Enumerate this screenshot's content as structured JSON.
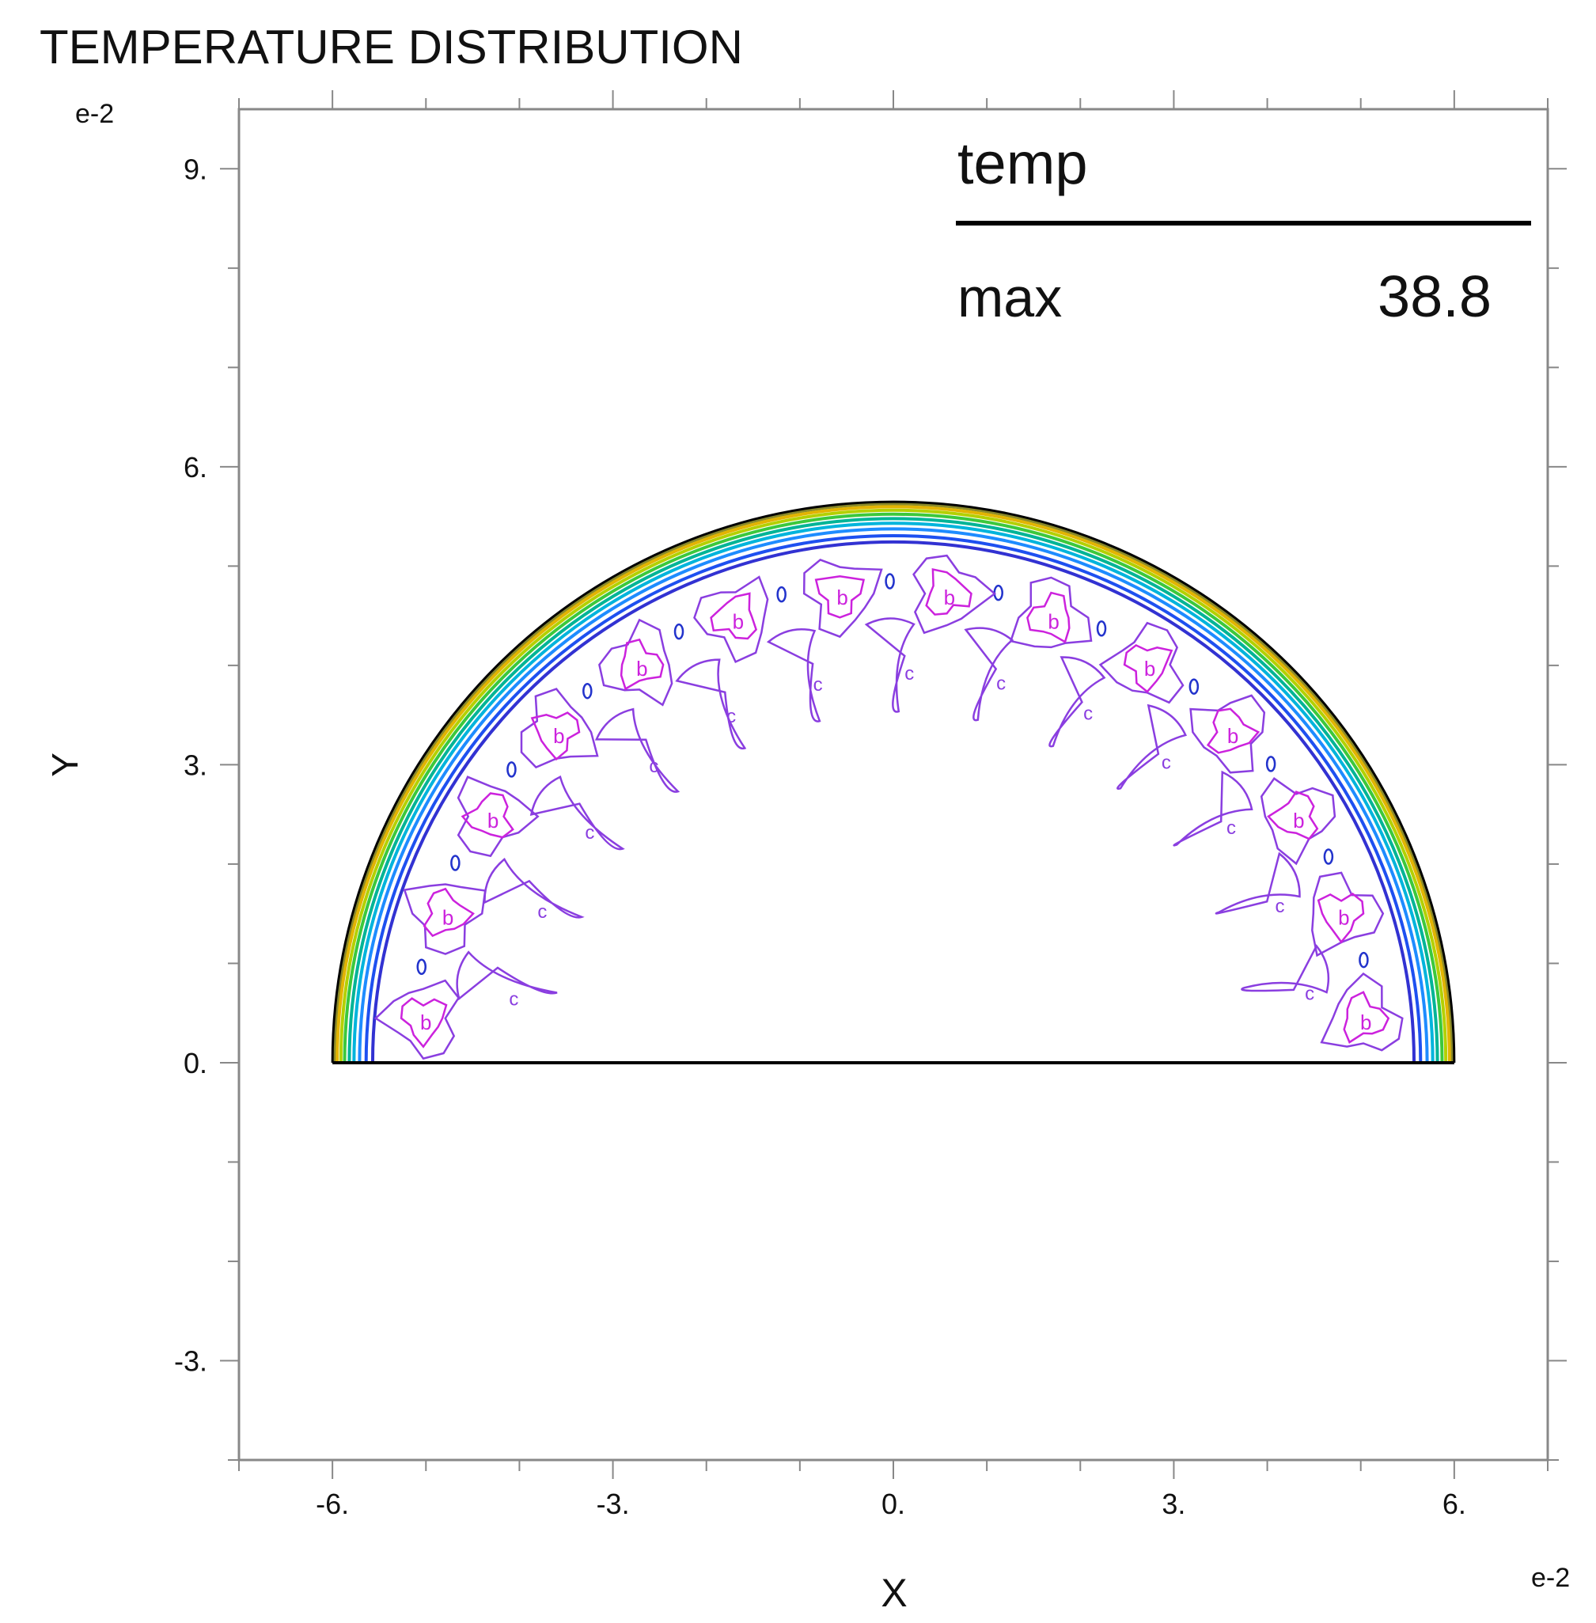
{
  "chart_data": {
    "type": "contour",
    "title": "TEMPERATURE DISTRIBUTION",
    "xlabel": "X",
    "ylabel": "Y",
    "x_exponent": "e-2",
    "y_exponent": "e-2",
    "xlim": [
      -7.0,
      7.0
    ],
    "ylim": [
      -4.0,
      9.6
    ],
    "x_ticks": [
      -6,
      -3,
      0,
      3,
      6
    ],
    "x_tick_labels": [
      "-6.",
      "-3.",
      "0.",
      "3.",
      "6."
    ],
    "y_ticks": [
      -3,
      0,
      3,
      6,
      9
    ],
    "y_tick_labels": [
      "-3.",
      "0.",
      "3.",
      "6.",
      "9."
    ],
    "minor_tick_step": 1,
    "grid": false,
    "domain": {
      "shape": "semicircle",
      "center": [
        0,
        0
      ],
      "radius": 6
    },
    "legend": {
      "variable": "temp",
      "stat_label": "max",
      "stat_value": "38.8",
      "placement": "top-right"
    },
    "contour_bands": [
      {
        "radius": 5.98,
        "color": "#8a8a2a"
      },
      {
        "radius": 5.95,
        "color": "#e2b400"
      },
      {
        "radius": 5.91,
        "color": "#b4d000"
      },
      {
        "radius": 5.87,
        "color": "#3cc83c"
      },
      {
        "radius": 5.82,
        "color": "#00b496"
      },
      {
        "radius": 5.77,
        "color": "#00b4dc"
      },
      {
        "radius": 5.71,
        "color": "#1e8cff"
      },
      {
        "radius": 5.64,
        "color": "#1e50f0"
      },
      {
        "radius": 5.57,
        "color": "#3232d2"
      }
    ],
    "inner_cells": {
      "count": 14,
      "b_radius": 5.05,
      "c_radius": 4.35,
      "b_label": "b",
      "c_label": "c",
      "b_color": "#cc22dd",
      "c_color": "#8a3ee0",
      "d_color": "#2233cc"
    },
    "colors": {
      "axis": "#888888",
      "outline": "#000000",
      "text": "#111111"
    }
  }
}
